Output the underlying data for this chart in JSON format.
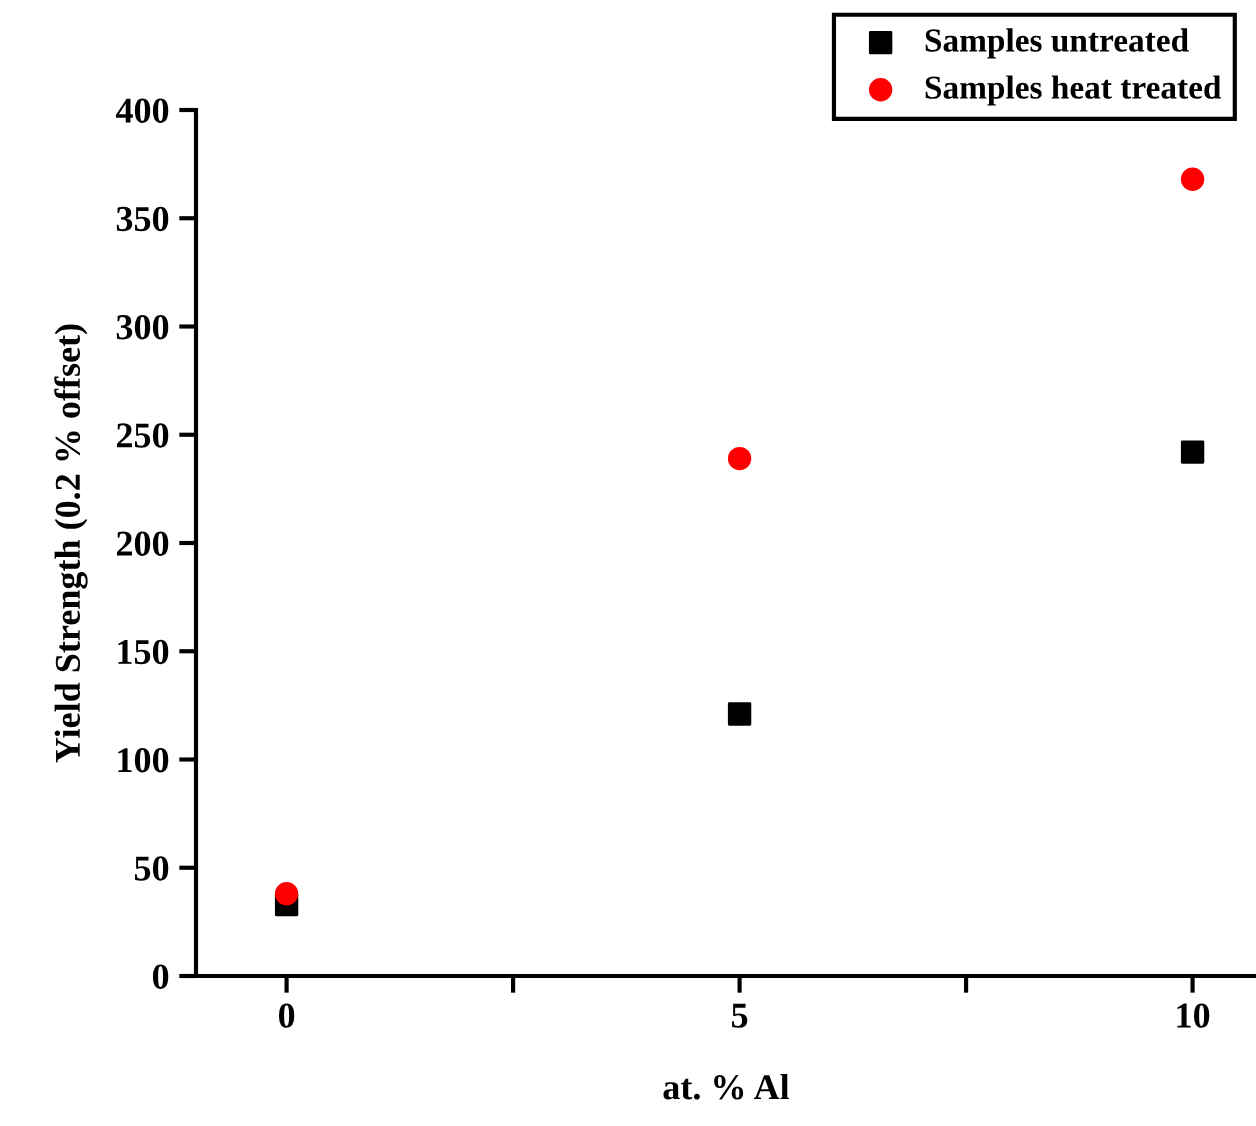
{
  "chart_data": {
    "type": "scatter",
    "xlabel": "at. % Al",
    "ylabel": "Yield Strength (0.2 % offset)",
    "x": [
      0,
      5,
      10
    ],
    "series": [
      {
        "name": "Samples untreated",
        "color": "#000000",
        "marker": "square",
        "values": [
          33,
          121,
          242
        ]
      },
      {
        "name": "Samples heat treated",
        "color": "#ff0000",
        "marker": "circle",
        "values": [
          38,
          239,
          368
        ]
      }
    ],
    "xlim": [
      -1,
      10.7
    ],
    "xticks": [
      0,
      {
        "value": 2.5,
        "label": null
      },
      5,
      {
        "value": 7.5,
        "label": null
      },
      10
    ],
    "ylim": [
      0,
      400
    ],
    "yticks": [
      0,
      50,
      100,
      150,
      200,
      250,
      300,
      350,
      400
    ],
    "legend": "top right",
    "grid": false
  }
}
